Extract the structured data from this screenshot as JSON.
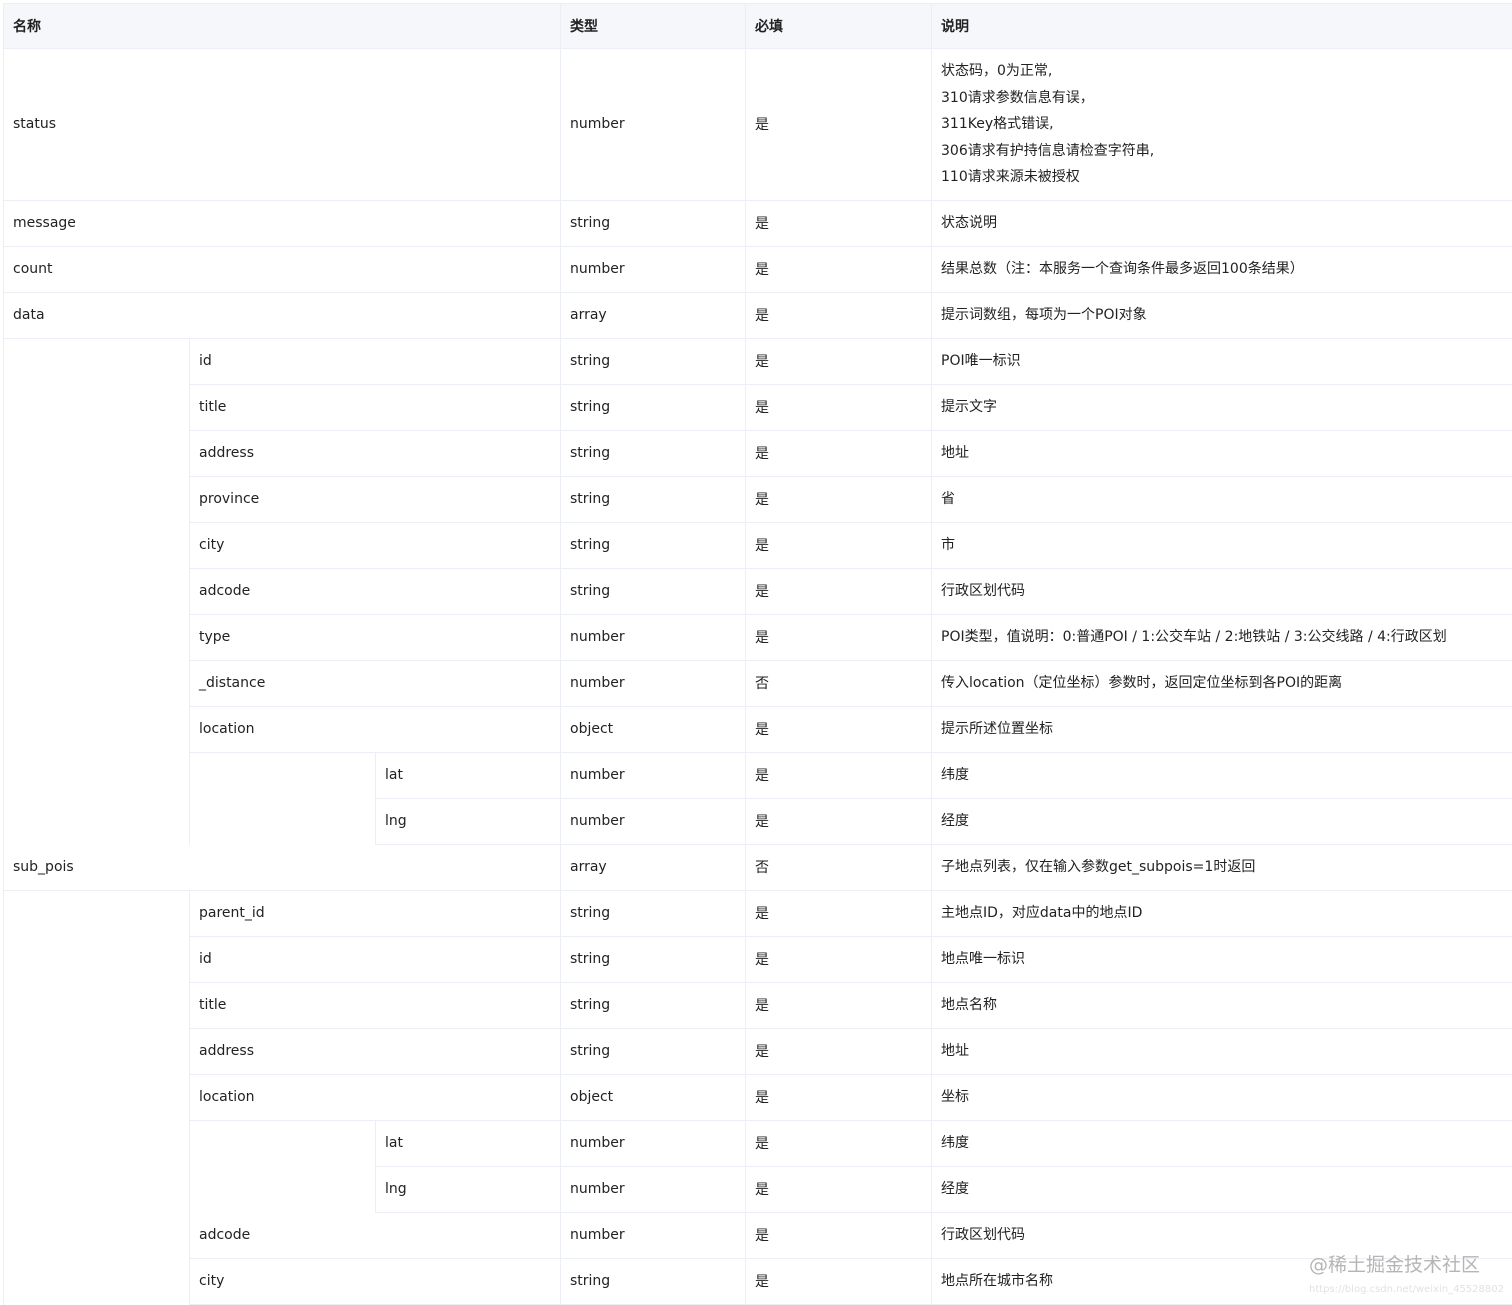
{
  "columns": {
    "name": "名称",
    "type": "类型",
    "required": "必填",
    "description": "说明"
  },
  "rows": [
    {
      "level": 0,
      "name": "status",
      "type": "number",
      "required": "是",
      "description": [
        "状态码，0为正常,",
        "310请求参数信息有误，",
        "311Key格式错误,",
        "306请求有护持信息请检查字符串,",
        "110请求来源未被授权"
      ]
    },
    {
      "level": 0,
      "name": "message",
      "type": "string",
      "required": "是",
      "description": [
        "状态说明"
      ]
    },
    {
      "level": 0,
      "name": "count",
      "type": "number",
      "required": "是",
      "description": [
        "结果总数（注：本服务一个查询条件最多返回100条结果）"
      ]
    },
    {
      "level": 0,
      "name": "data",
      "type": "array",
      "required": "是",
      "description": [
        "提示词数组，每项为一个POI对象"
      ]
    },
    {
      "level": 1,
      "name": "id",
      "type": "string",
      "required": "是",
      "description": [
        "POI唯一标识"
      ]
    },
    {
      "level": 1,
      "name": "title",
      "type": "string",
      "required": "是",
      "description": [
        "提示文字"
      ]
    },
    {
      "level": 1,
      "name": "address",
      "type": "string",
      "required": "是",
      "description": [
        "地址"
      ]
    },
    {
      "level": 1,
      "name": "province",
      "type": "string",
      "required": "是",
      "description": [
        "省"
      ]
    },
    {
      "level": 1,
      "name": "city",
      "type": "string",
      "required": "是",
      "description": [
        "市"
      ]
    },
    {
      "level": 1,
      "name": "adcode",
      "type": "string",
      "required": "是",
      "description": [
        "行政区划代码"
      ]
    },
    {
      "level": 1,
      "name": "type",
      "type": "number",
      "required": "是",
      "description": [
        "POI类型，值说明：0:普通POI / 1:公交车站 / 2:地铁站 / 3:公交线路 / 4:行政区划"
      ]
    },
    {
      "level": 1,
      "name": "_distance",
      "type": "number",
      "required": "否",
      "description": [
        "传入location（定位坐标）参数时，返回定位坐标到各POI的距离"
      ]
    },
    {
      "level": 1,
      "name": "location",
      "type": "object",
      "required": "是",
      "description": [
        "提示所述位置坐标"
      ]
    },
    {
      "level": 2,
      "name": "lat",
      "type": "number",
      "required": "是",
      "description": [
        "纬度"
      ]
    },
    {
      "level": 2,
      "name": "lng",
      "type": "number",
      "required": "是",
      "description": [
        "经度"
      ]
    },
    {
      "level": 0,
      "name": "sub_pois",
      "type": "array",
      "required": "否",
      "description": [
        "子地点列表，仅在输入参数get_subpois=1时返回"
      ]
    },
    {
      "level": 1,
      "name": "parent_id",
      "type": "string",
      "required": "是",
      "description": [
        "主地点ID，对应data中的地点ID"
      ]
    },
    {
      "level": 1,
      "name": "id",
      "type": "string",
      "required": "是",
      "description": [
        "地点唯一标识"
      ]
    },
    {
      "level": 1,
      "name": "title",
      "type": "string",
      "required": "是",
      "description": [
        "地点名称"
      ]
    },
    {
      "level": 1,
      "name": "address",
      "type": "string",
      "required": "是",
      "description": [
        "地址"
      ]
    },
    {
      "level": 1,
      "name": "location",
      "type": "object",
      "required": "是",
      "description": [
        "坐标"
      ]
    },
    {
      "level": 2,
      "name": "lat",
      "type": "number",
      "required": "是",
      "description": [
        "纬度"
      ]
    },
    {
      "level": 2,
      "name": "lng",
      "type": "number",
      "required": "是",
      "description": [
        "经度"
      ]
    },
    {
      "level": 1,
      "name": "adcode",
      "type": "number",
      "required": "是",
      "description": [
        "行政区划代码"
      ]
    },
    {
      "level": 1,
      "name": "city",
      "type": "string",
      "required": "是",
      "description": [
        "地点所在城市名称"
      ]
    }
  ],
  "watermark": {
    "text": "@稀土掘金技术社区",
    "url_text": "https://blog.csdn.net/weixin_45528802"
  }
}
